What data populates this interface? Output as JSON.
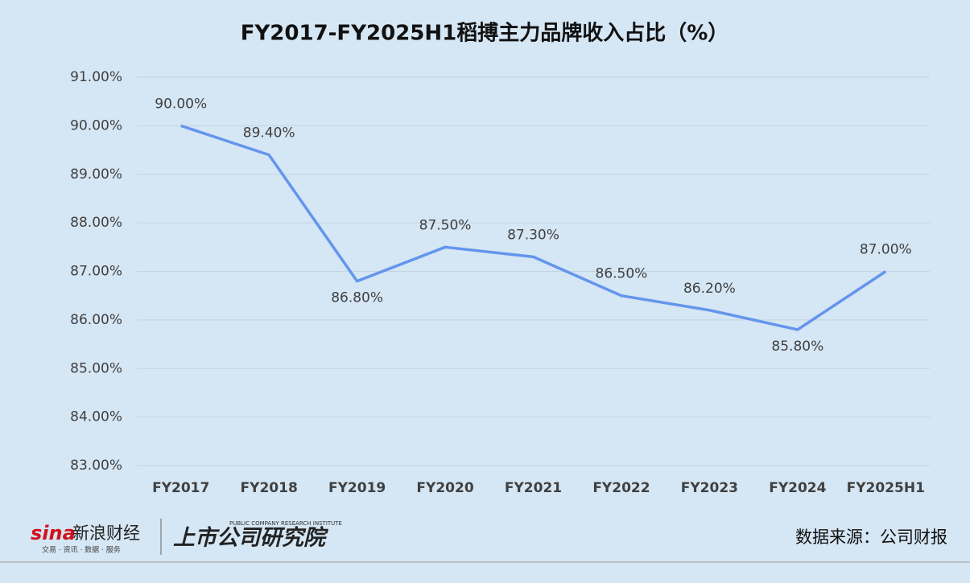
{
  "chart_data": {
    "type": "line",
    "title": "FY2017-FY2025H1稻搏主力品牌收入占比（%）",
    "categories": [
      "FY2017",
      "FY2018",
      "FY2019",
      "FY2020",
      "FY2021",
      "FY2022",
      "FY2023",
      "FY2024",
      "FY2025H1"
    ],
    "series": [
      {
        "name": "稻搏主力品牌收入占比",
        "color": "#6495ed",
        "values": [
          90.0,
          89.4,
          86.8,
          87.5,
          87.3,
          86.5,
          86.2,
          85.8,
          87.0
        ],
        "value_labels": [
          "90.00%",
          "89.40%",
          "86.80%",
          "87.50%",
          "87.30%",
          "86.50%",
          "86.20%",
          "85.80%",
          "87.00%"
        ]
      }
    ],
    "ylim": [
      83,
      91
    ],
    "yticks": [
      {
        "value": 83,
        "label": "83.00%"
      },
      {
        "value": 84,
        "label": "84.00%"
      },
      {
        "value": 85,
        "label": "85.00%"
      },
      {
        "value": 86,
        "label": "86.00%"
      },
      {
        "value": 87,
        "label": "87.00%"
      },
      {
        "value": 88,
        "label": "88.00%"
      },
      {
        "value": 89,
        "label": "89.00%"
      },
      {
        "value": 90,
        "label": "90.00%"
      },
      {
        "value": 91,
        "label": "91.00%"
      }
    ],
    "grid": true
  },
  "footer": {
    "logo": "sina",
    "brand": "新浪财经",
    "slogan": "交易 · 资讯 · 数据 · 服务",
    "institute": "上市公司研究院",
    "institute_en": "PUBLIC COMPANY RESEARCH INSTITUTE",
    "source": "数据来源：公司财报"
  }
}
